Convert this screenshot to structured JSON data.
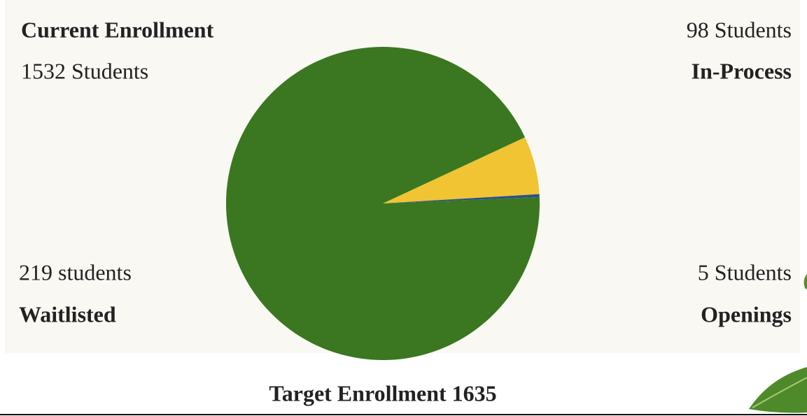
{
  "chart_data": {
    "type": "pie",
    "title": "Target Enrollment 1635",
    "categories": [
      "In-Process",
      "Openings",
      "Current Enrollment"
    ],
    "values": [
      98,
      5,
      1532
    ],
    "value_labels": [
      "98 Students",
      "5 Students",
      "1532 Students"
    ],
    "colors": [
      "#f0c432",
      "#2b4f8c",
      "#3a7720"
    ]
  },
  "waitlist": {
    "label": "Waitlisted",
    "value_label": "219 students"
  }
}
